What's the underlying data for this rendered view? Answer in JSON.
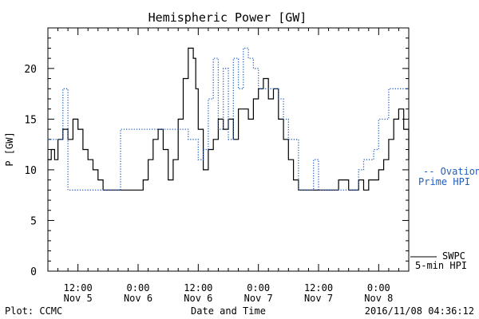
{
  "chart_data": {
    "type": "line",
    "title": "Hemispheric Power [GW]",
    "xlabel": "Date and Time",
    "ylabel": "P [GW]",
    "ylim": [
      0,
      24
    ],
    "xlim": [
      "2016-11-05T06:00",
      "2016-11-08T06:00"
    ],
    "y_ticks": [
      "0",
      "5",
      "10",
      "15",
      "20"
    ],
    "x_ticks": [
      {
        "time": "2016-11-05T12:00",
        "line1": "12:00",
        "line2": "Nov 5"
      },
      {
        "time": "2016-11-06T00:00",
        "line1": "0:00",
        "line2": "Nov 6"
      },
      {
        "time": "2016-11-06T12:00",
        "line1": "12:00",
        "line2": "Nov 6"
      },
      {
        "time": "2016-11-07T00:00",
        "line1": "0:00",
        "line2": "Nov 7"
      },
      {
        "time": "2016-11-07T12:00",
        "line1": "12:00",
        "line2": "Nov 7"
      },
      {
        "time": "2016-11-08T00:00",
        "line1": "0:00",
        "line2": "Nov 8"
      }
    ],
    "grid": false,
    "series": [
      {
        "name": "SWPC 5-min HPI",
        "legend_line1": "SWPC",
        "legend_line2": "5-min HPI",
        "color": "#000000",
        "style": "solid",
        "x": [
          "2016-11-05T06:00",
          "2016-11-05T06:40",
          "2016-11-05T07:20",
          "2016-11-05T08:00",
          "2016-11-05T09:00",
          "2016-11-05T10:00",
          "2016-11-05T11:00",
          "2016-11-05T12:00",
          "2016-11-05T13:00",
          "2016-11-05T14:00",
          "2016-11-05T15:00",
          "2016-11-05T16:00",
          "2016-11-05T17:00",
          "2016-11-05T18:00",
          "2016-11-05T20:00",
          "2016-11-05T22:00",
          "2016-11-05T23:00",
          "2016-11-06T00:00",
          "2016-11-06T01:00",
          "2016-11-06T02:00",
          "2016-11-06T03:00",
          "2016-11-06T04:00",
          "2016-11-06T05:00",
          "2016-11-06T06:00",
          "2016-11-06T07:00",
          "2016-11-06T08:00",
          "2016-11-06T09:00",
          "2016-11-06T10:00",
          "2016-11-06T11:00",
          "2016-11-06T11:30",
          "2016-11-06T12:00",
          "2016-11-06T13:00",
          "2016-11-06T14:00",
          "2016-11-06T15:00",
          "2016-11-06T16:00",
          "2016-11-06T17:00",
          "2016-11-06T18:00",
          "2016-11-06T19:00",
          "2016-11-06T20:00",
          "2016-11-06T21:00",
          "2016-11-06T22:00",
          "2016-11-06T23:00",
          "2016-11-07T00:00",
          "2016-11-07T01:00",
          "2016-11-07T02:00",
          "2016-11-07T03:00",
          "2016-11-07T04:00",
          "2016-11-07T05:00",
          "2016-11-07T06:00",
          "2016-11-07T07:00",
          "2016-11-07T08:00",
          "2016-11-07T09:00",
          "2016-11-07T10:00",
          "2016-11-07T11:00",
          "2016-11-07T12:00",
          "2016-11-07T14:00",
          "2016-11-07T16:00",
          "2016-11-07T17:00",
          "2016-11-07T18:00",
          "2016-11-07T19:00",
          "2016-11-07T20:00",
          "2016-11-07T21:00",
          "2016-11-07T22:00",
          "2016-11-07T23:00",
          "2016-11-08T00:00",
          "2016-11-08T01:00",
          "2016-11-08T02:00",
          "2016-11-08T03:00",
          "2016-11-08T04:00",
          "2016-11-08T05:00",
          "2016-11-08T06:00"
        ],
        "values": [
          11,
          12,
          11,
          13,
          14,
          13,
          15,
          14,
          12,
          11,
          10,
          9,
          8,
          8,
          8,
          8,
          8,
          8,
          9,
          11,
          13,
          14,
          12,
          9,
          11,
          15,
          19,
          22,
          21,
          18,
          14,
          10,
          12,
          13,
          15,
          14,
          15,
          13,
          16,
          16,
          15,
          17,
          18,
          19,
          17,
          18,
          15,
          13,
          11,
          9,
          8,
          8,
          8,
          8,
          8,
          8,
          9,
          9,
          8,
          8,
          9,
          8,
          9,
          9,
          10,
          11,
          13,
          15,
          16,
          14,
          11
        ]
      },
      {
        "name": "Ovation Prime HPI",
        "legend_line1": "-- Ovation",
        "legend_line2": "Prime HPI",
        "color": "#1f5fbf",
        "style": "dotted",
        "x": [
          "2016-11-05T06:00",
          "2016-11-05T07:00",
          "2016-11-05T09:00",
          "2016-11-05T10:00",
          "2016-11-05T10:30",
          "2016-11-05T20:00",
          "2016-11-05T20:30",
          "2016-11-06T04:00",
          "2016-11-06T05:00",
          "2016-11-06T10:00",
          "2016-11-06T10:30",
          "2016-11-06T12:00",
          "2016-11-06T13:00",
          "2016-11-06T14:00",
          "2016-11-06T15:00",
          "2016-11-06T16:00",
          "2016-11-06T17:00",
          "2016-11-06T18:00",
          "2016-11-06T19:00",
          "2016-11-06T20:00",
          "2016-11-06T21:00",
          "2016-11-06T22:00",
          "2016-11-06T23:00",
          "2016-11-07T00:00",
          "2016-11-07T01:00",
          "2016-11-07T02:00",
          "2016-11-07T03:00",
          "2016-11-07T04:00",
          "2016-11-07T05:00",
          "2016-11-07T06:00",
          "2016-11-07T08:00",
          "2016-11-07T10:00",
          "2016-11-07T11:00",
          "2016-11-07T12:00",
          "2016-11-07T13:00",
          "2016-11-07T15:00",
          "2016-11-07T17:00",
          "2016-11-07T19:00",
          "2016-11-07T20:00",
          "2016-11-07T21:00",
          "2016-11-07T22:00",
          "2016-11-07T23:00",
          "2016-11-08T00:00",
          "2016-11-08T01:00",
          "2016-11-08T02:00",
          "2016-11-08T06:00"
        ],
        "values": [
          13,
          13,
          18,
          8,
          8,
          8,
          14,
          14,
          14,
          13,
          13,
          11,
          12,
          17,
          21,
          14,
          20,
          13,
          21,
          18,
          22,
          21,
          20,
          18,
          18,
          18,
          18,
          17,
          15,
          13,
          8,
          8,
          11,
          8,
          8,
          8,
          8,
          8,
          10,
          11,
          11,
          12,
          15,
          15,
          18,
          18
        ]
      }
    ],
    "footer": {
      "left": "Plot: CCMC",
      "right": "2016/11/08 04:36:12"
    }
  }
}
